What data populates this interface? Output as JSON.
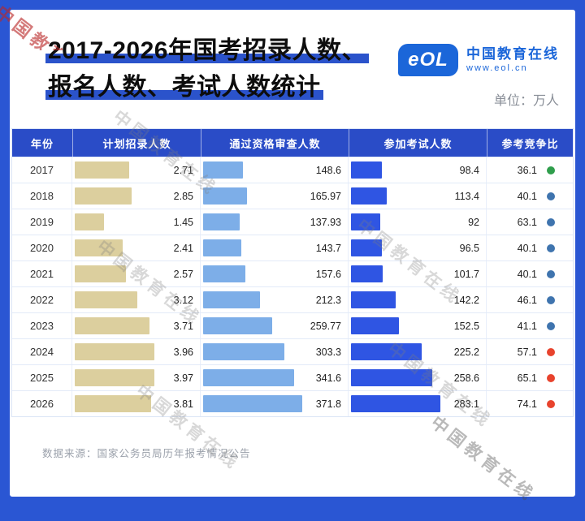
{
  "page": {
    "title_line1": "2017-2026年国考招录人数、",
    "title_line2": "报名人数、考试人数统计",
    "unit_label": "单位：万人",
    "source": "数据来源：国家公务员局历年报考情况公告",
    "watermark": "中国教育在线",
    "logo": {
      "badge": "eOL",
      "name": "中国教育在线",
      "site": "www.eol.cn"
    },
    "colors": {
      "frame": "#2a56d3",
      "header": "#2a4cc7",
      "highlight": "#2b53cb"
    }
  },
  "table": {
    "headers": [
      "年份",
      "计划招录人数",
      "通过资格审查人数",
      "参加考试人数",
      "参考竞争比"
    ],
    "dot_palette": {
      "green": "#2f9e4c",
      "blue": "#3f74ae",
      "red": "#e8432d"
    }
  },
  "chart_data": {
    "type": "bar",
    "title": "2017-2026年国考招录人数、报名人数、考试人数统计",
    "unit": "万人",
    "categories": [
      "2017",
      "2018",
      "2019",
      "2020",
      "2021",
      "2022",
      "2023",
      "2024",
      "2025",
      "2026"
    ],
    "series": [
      {
        "key": "planned",
        "name": "计划招录人数",
        "color": "#dccf9e",
        "values": [
          2.71,
          2.85,
          1.45,
          2.41,
          2.57,
          3.12,
          3.71,
          3.96,
          3.97,
          3.81
        ]
      },
      {
        "key": "qualified",
        "name": "通过资格审查人数",
        "color": "#7daee8",
        "values": [
          148.6,
          165.97,
          137.93,
          143.7,
          157.6,
          212.3,
          259.77,
          303.3,
          341.6,
          371.8
        ]
      },
      {
        "key": "examined",
        "name": "参加考试人数",
        "color": "#2f55e3",
        "values": [
          98.4,
          113.4,
          92,
          96.5,
          101.7,
          142.2,
          152.5,
          225.2,
          258.6,
          283.1
        ]
      },
      {
        "key": "ratio",
        "name": "参考竞争比",
        "values": [
          36.1,
          40.1,
          63.1,
          40.1,
          40.1,
          46.1,
          41.1,
          57.1,
          65.1,
          74.1
        ]
      }
    ],
    "dot_colors": [
      "green",
      "blue",
      "blue",
      "blue",
      "blue",
      "blue",
      "blue",
      "red",
      "red",
      "red"
    ],
    "legend": "none",
    "grid": "table-lines"
  }
}
